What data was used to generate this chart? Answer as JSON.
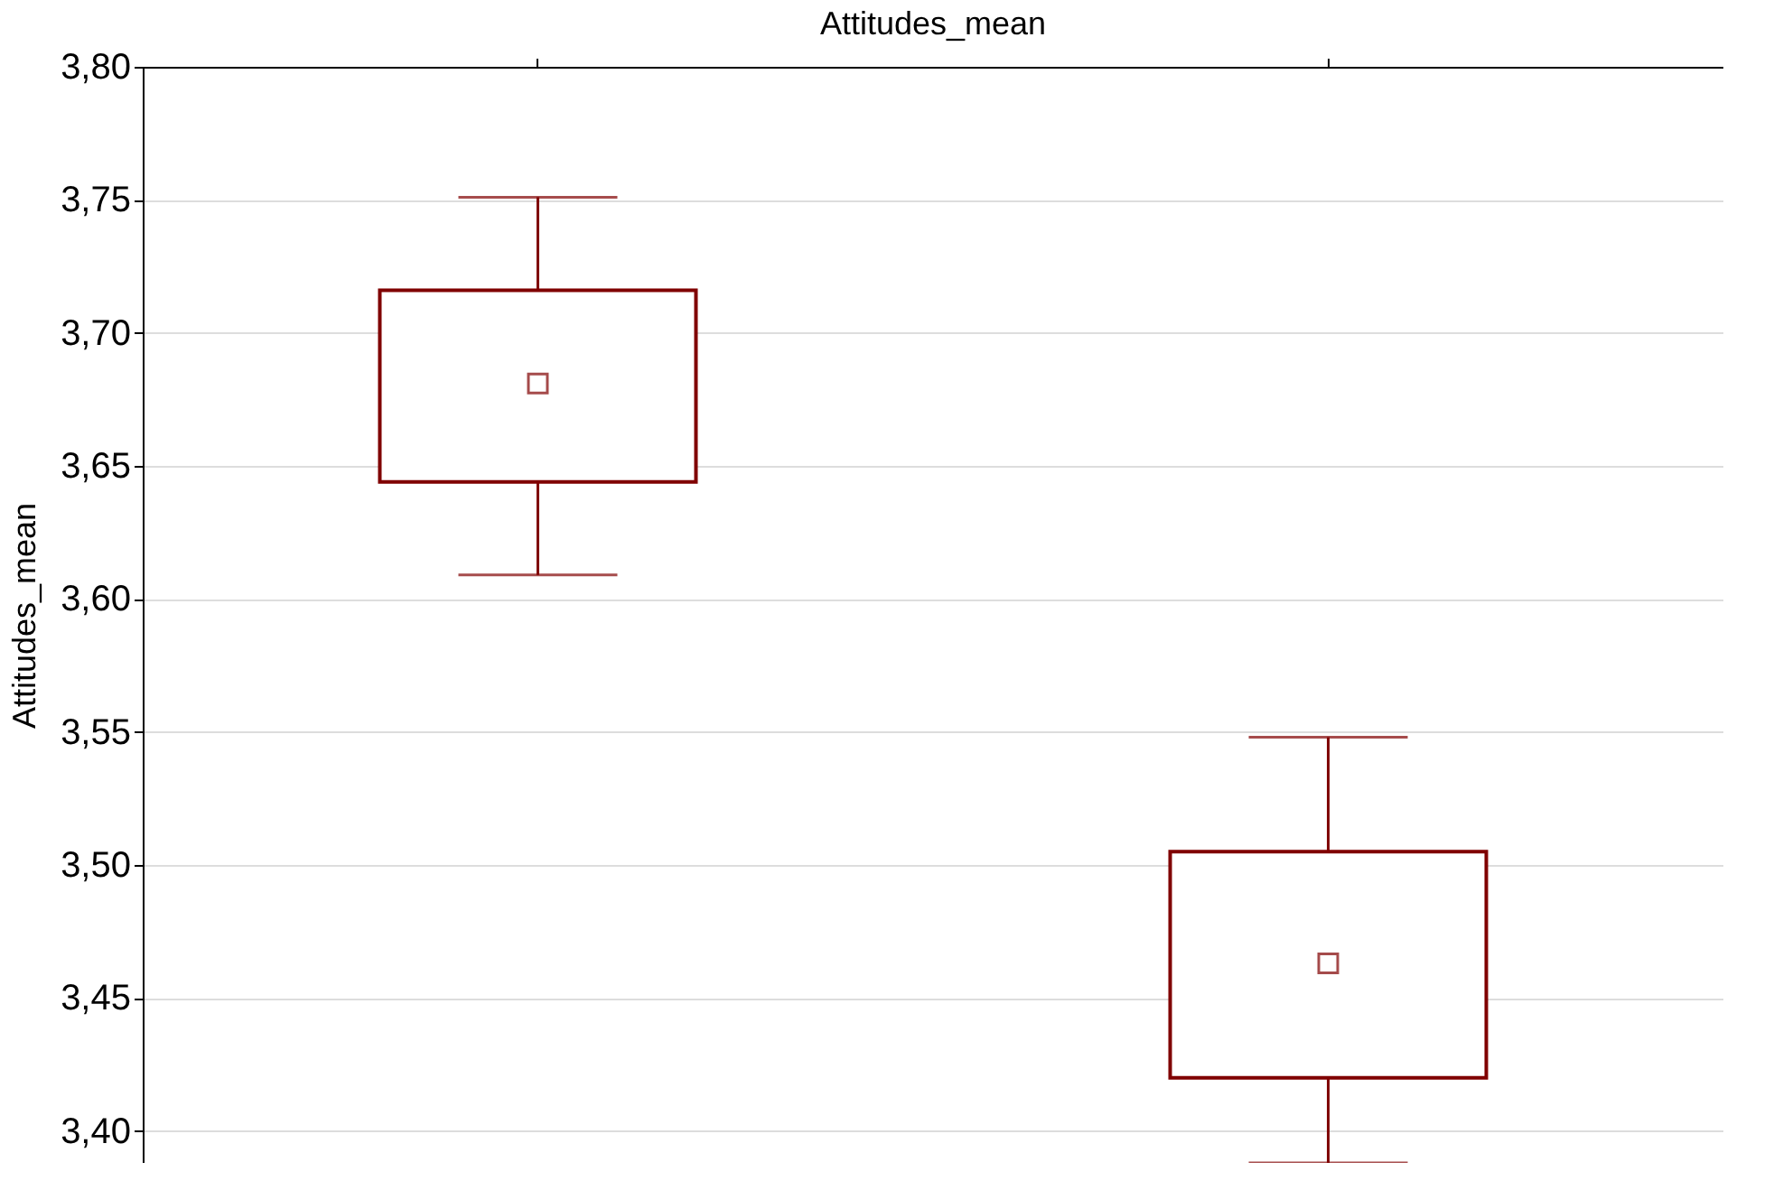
{
  "chart_data": {
    "type": "box",
    "title": "Attitudes_mean",
    "ylabel": "Attitudes_mean",
    "categories": [
      null,
      null
    ],
    "color": "#800000",
    "marker": "square",
    "grid": "y",
    "boxes": [
      {
        "low": 3.609,
        "q1": 3.644,
        "median": 3.681,
        "q3": 3.716,
        "high": 3.751
      },
      {
        "low": 3.388,
        "q1": 3.42,
        "median": 3.463,
        "q3": 3.505,
        "high": 3.548
      }
    ],
    "ylim": [
      3.388,
      3.8
    ],
    "yticks": [
      {
        "value": 3.4,
        "label": "3,40"
      },
      {
        "value": 3.45,
        "label": "3,45"
      },
      {
        "value": 3.5,
        "label": "3,50"
      },
      {
        "value": 3.55,
        "label": "3,55"
      },
      {
        "value": 3.6,
        "label": "3,60"
      },
      {
        "value": 3.65,
        "label": "3,65"
      },
      {
        "value": 3.7,
        "label": "3,70"
      },
      {
        "value": 3.75,
        "label": "3,75"
      },
      {
        "value": 3.8,
        "label": "3,80"
      }
    ]
  }
}
